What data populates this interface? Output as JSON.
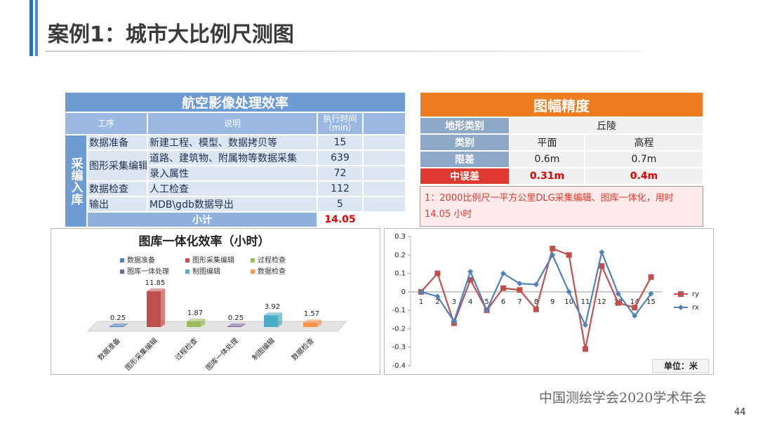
{
  "header": {
    "title": "案例1：城市大比例尺测图"
  },
  "efficiency_table": {
    "title": "航空影像处理效率",
    "columns": [
      "工序",
      "说明",
      "执行时间（min）"
    ],
    "group": "采编入库",
    "rows": [
      {
        "step": "数据准备",
        "items": [
          {
            "desc": "新建工程、模型、数据拷贝等",
            "time": 15
          }
        ]
      },
      {
        "step": "图形采集编辑",
        "items": [
          {
            "desc": "道路、建筑物、附属物等数据采集",
            "time": 639
          },
          {
            "desc": "录入属性",
            "time": 72
          }
        ]
      },
      {
        "step": "数据检查",
        "items": [
          {
            "desc": "人工检查",
            "time": 112
          }
        ]
      },
      {
        "step": "输出",
        "items": [
          {
            "desc": "MDB\\gdb数据导出",
            "time": 5
          }
        ]
      }
    ],
    "total_label": "小计",
    "total": 14.05
  },
  "accuracy_table": {
    "title": "图幅精度",
    "rows": [
      [
        "地形类别",
        "丘陵"
      ],
      [
        "类别",
        "平面",
        "高程"
      ],
      [
        "限差",
        "0.6m",
        "0.7m"
      ],
      [
        "中误差",
        "0.31m",
        "0.4m"
      ]
    ],
    "note": "1：2000比例尺一平方公里DLG采集编辑、图库一体化，用时14.05 小时"
  },
  "chart_data": [
    {
      "type": "bar",
      "title": "图库一体化效率（小时）",
      "categories": [
        "数据准备",
        "图形采集编辑",
        "过程检查",
        "图库一体处理",
        "制图编辑",
        "数据检查"
      ],
      "values": [
        0.25,
        11.85,
        1.87,
        0.25,
        3.92,
        1.57
      ],
      "colors": [
        "#4f81bd",
        "#c0504d",
        "#9bbb59",
        "#8064a2",
        "#4bacc6",
        "#f79646"
      ]
    },
    {
      "type": "line",
      "categories": [
        "1",
        "2",
        "3",
        "4",
        "5",
        "6",
        "7",
        "8",
        "9",
        "10",
        "11",
        "12",
        "13",
        "14",
        "15"
      ],
      "series": [
        {
          "name": "ry",
          "color": "#c0504d",
          "marker": "square",
          "values": [
            0,
            0.1,
            -0.17,
            0.065,
            -0.1,
            0.02,
            0.01,
            -0.095,
            0.235,
            0.2,
            -0.31,
            0.14,
            -0.06,
            -0.085,
            0.08
          ]
        },
        {
          "name": "rx",
          "color": "#4f81bd",
          "marker": "diamond",
          "values": [
            0,
            -0.025,
            -0.16,
            0.11,
            -0.1,
            0.1,
            0.045,
            0.04,
            0.2,
            0,
            -0.18,
            0.215,
            -0.01,
            -0.13,
            -0.01
          ]
        }
      ],
      "ylim": [
        -0.4,
        0.3
      ],
      "yticks": [
        -0.4,
        -0.3,
        -0.2,
        -0.1,
        0,
        0.1,
        0.2,
        0.3
      ],
      "note": "单位：米"
    }
  ],
  "footer": {
    "org": "中国测绘学会2020学术年会",
    "page": 44
  }
}
